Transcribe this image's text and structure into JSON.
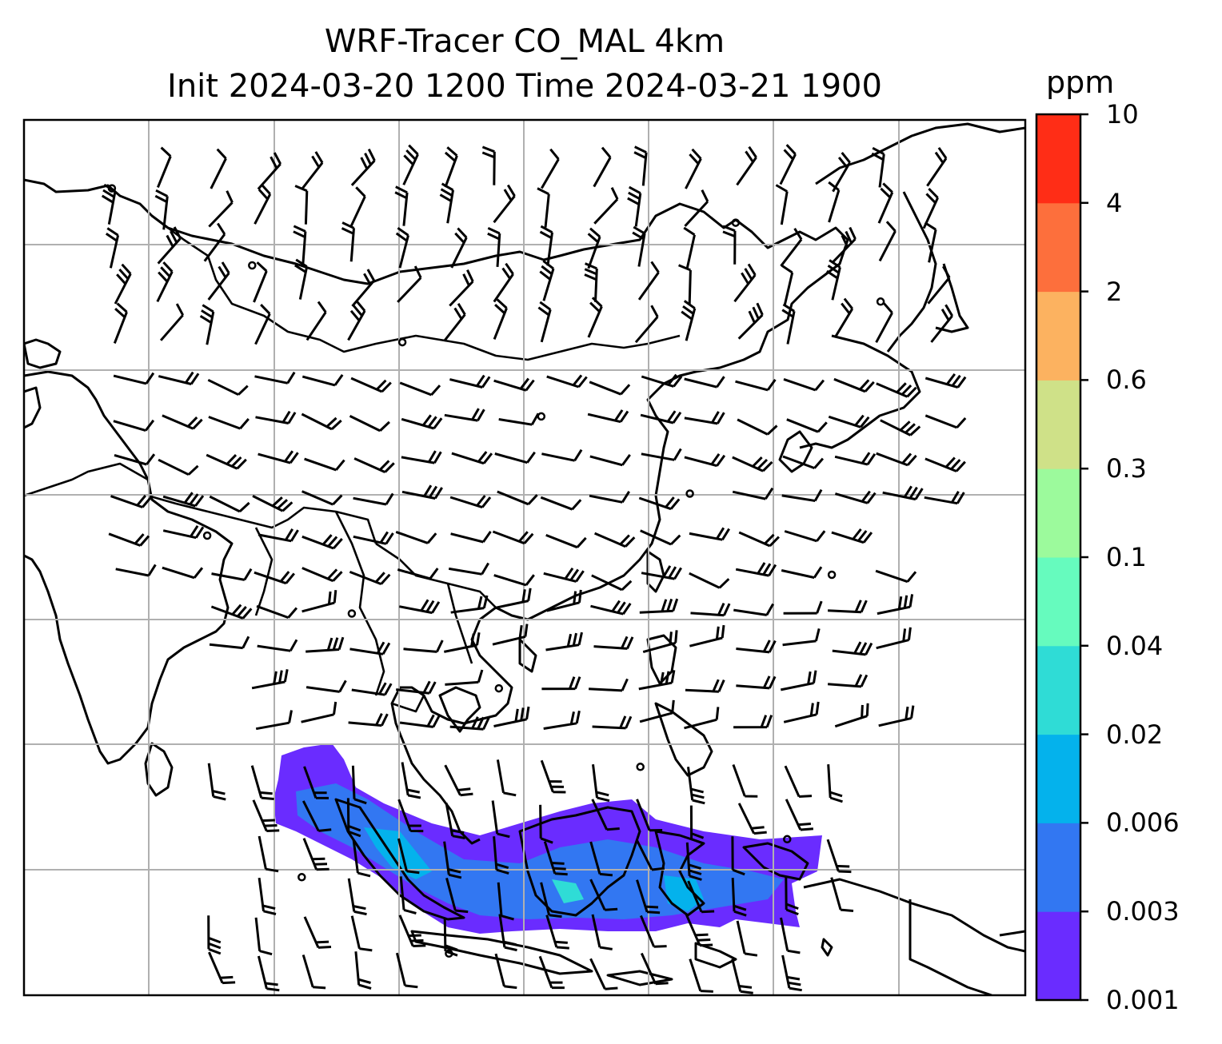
{
  "title_line1": "WRF-Tracer CO_MAL 4km",
  "title_line2": "Init 2024-03-20 1200 Time 2024-03-21 1900",
  "colorbar": {
    "unit": "ppm",
    "levels": [
      "0.001",
      "0.003",
      "0.006",
      "0.02",
      "0.04",
      "0.1",
      "0.3",
      "0.6",
      "2",
      "4",
      "10"
    ],
    "colors": [
      "#6a2cff",
      "#3277f2",
      "#04b2ec",
      "#2fdcd6",
      "#66fbbe",
      "#9cfa9c",
      "#cfe188",
      "#fcb260",
      "#fd6f3c",
      "#ff2d16"
    ]
  },
  "map": {
    "land_color": "#ffffff",
    "coastline_color": "#000000",
    "grid_color": "#b0b0b0",
    "wind_barbs": "black",
    "tracer_plume_colors": [
      "#6a2cff",
      "#3277f2",
      "#04b2ec",
      "#2fdcd6"
    ]
  }
}
